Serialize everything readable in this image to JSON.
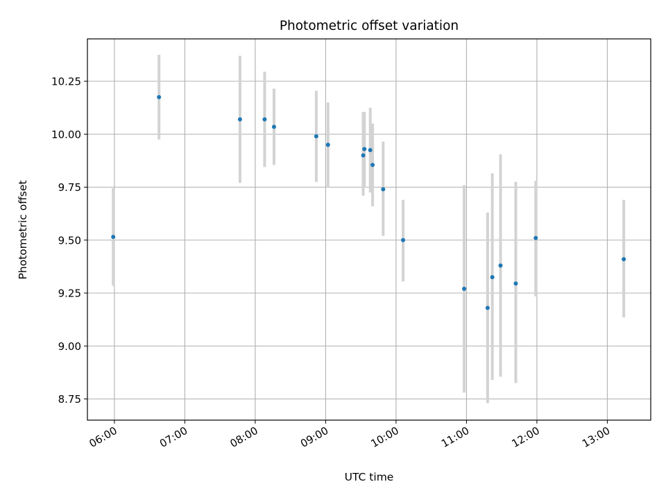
{
  "chart_data": {
    "type": "scatter",
    "title": "Photometric offset variation",
    "xlabel": "UTC time",
    "ylabel": "Photometric offset",
    "x_tick_labels": [
      "06:00",
      "07:00",
      "08:00",
      "09:00",
      "10:00",
      "11:00",
      "12:00",
      "13:00"
    ],
    "y_tick_labels": [
      "8.75",
      "9.00",
      "9.25",
      "9.50",
      "9.75",
      "10.00",
      "10.25"
    ],
    "y_ticks": [
      8.75,
      9.0,
      9.25,
      9.5,
      9.75,
      10.0,
      10.25
    ],
    "xlim": [
      "05:37",
      "13:37"
    ],
    "ylim": [
      8.65,
      10.45
    ],
    "grid": true,
    "colors": {
      "point": "#1f77b4",
      "errorbar": "#d3d3d3",
      "grid": "#b0b0b0"
    },
    "points": [
      {
        "x": "05:59",
        "y": 9.515,
        "ylow": 9.285,
        "yhigh": 9.745
      },
      {
        "x": "06:38",
        "y": 10.175,
        "ylow": 9.975,
        "yhigh": 10.375
      },
      {
        "x": "07:47",
        "y": 10.07,
        "ylow": 9.77,
        "yhigh": 10.37
      },
      {
        "x": "08:08",
        "y": 10.07,
        "ylow": 9.845,
        "yhigh": 10.295
      },
      {
        "x": "08:16",
        "y": 10.035,
        "ylow": 9.855,
        "yhigh": 10.215
      },
      {
        "x": "08:52",
        "y": 9.99,
        "ylow": 9.775,
        "yhigh": 10.205
      },
      {
        "x": "09:02",
        "y": 9.95,
        "ylow": 9.75,
        "yhigh": 10.15
      },
      {
        "x": "09:32",
        "y": 9.9,
        "ylow": 9.71,
        "yhigh": 10.105
      },
      {
        "x": "09:33",
        "y": 9.93,
        "ylow": 9.75,
        "yhigh": 10.105
      },
      {
        "x": "09:38",
        "y": 9.925,
        "ylow": 9.725,
        "yhigh": 10.125
      },
      {
        "x": "09:40",
        "y": 9.855,
        "ylow": 9.66,
        "yhigh": 10.05
      },
      {
        "x": "09:49",
        "y": 9.74,
        "ylow": 9.52,
        "yhigh": 9.965
      },
      {
        "x": "10:06",
        "y": 9.5,
        "ylow": 9.305,
        "yhigh": 9.69
      },
      {
        "x": "10:58",
        "y": 9.27,
        "ylow": 8.78,
        "yhigh": 9.76
      },
      {
        "x": "11:18",
        "y": 9.18,
        "ylow": 8.73,
        "yhigh": 9.63
      },
      {
        "x": "11:22",
        "y": 9.325,
        "ylow": 8.84,
        "yhigh": 9.815
      },
      {
        "x": "11:29",
        "y": 9.38,
        "ylow": 8.855,
        "yhigh": 9.905
      },
      {
        "x": "11:42",
        "y": 9.295,
        "ylow": 8.825,
        "yhigh": 9.775
      },
      {
        "x": "11:59",
        "y": 9.51,
        "ylow": 9.235,
        "yhigh": 9.78
      },
      {
        "x": "13:14",
        "y": 9.41,
        "ylow": 9.135,
        "yhigh": 9.69
      }
    ]
  }
}
